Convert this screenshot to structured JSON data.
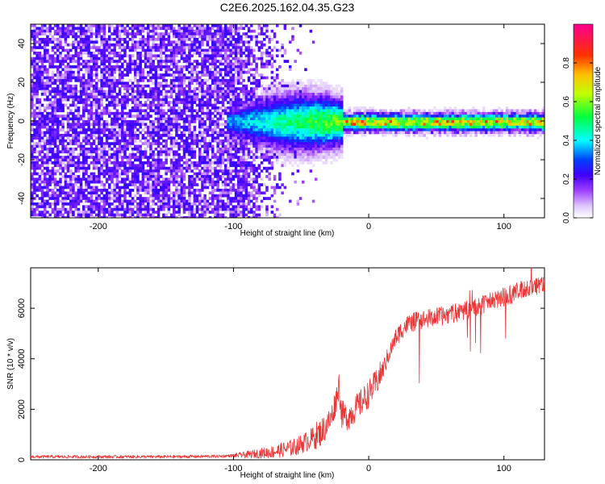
{
  "title": "C2E6.2025.162.04.35.G23",
  "chart_data": [
    {
      "type": "heatmap",
      "xlabel": "Height of straight line (km)",
      "ylabel": "Frequency (Hz)",
      "xlim": [
        -250,
        130
      ],
      "ylim": [
        -50,
        50
      ],
      "xticks": [
        -200,
        -100,
        0,
        100
      ],
      "yticks": [
        -40,
        -20,
        0,
        20,
        40
      ],
      "colorbar": {
        "label": "Normalized spectral amplitude",
        "range": [
          0,
          1
        ],
        "ticks": [
          "0.0",
          "0.2",
          "0.4",
          "0.6",
          "0.8"
        ],
        "tick_values": [
          0.0,
          0.2,
          0.4,
          0.6,
          0.8
        ],
        "colors": [
          "#ffffff",
          "#cc88ff",
          "#8000ff",
          "#0000ff",
          "#00ffff",
          "#00ff00",
          "#ffff00",
          "#ff8000",
          "#ff0000",
          "#ff00aa"
        ]
      },
      "description": "Broadband noise for heights below about -60 km; concentrated carrier near 0 Hz above about -100 km"
    },
    {
      "type": "line",
      "xlabel": "Height of straight line (km)",
      "ylabel": "SNR (10 * v/v)",
      "xlim": [
        -250,
        130
      ],
      "ylim": [
        0,
        7600
      ],
      "xticks": [
        -200,
        -100,
        0,
        100
      ],
      "yticks": [
        0,
        2000,
        4000,
        6000
      ],
      "color": "#ee3333",
      "series": [
        {
          "name": "SNR",
          "x": [
            -250,
            -200,
            -150,
            -110,
            -90,
            -70,
            -55,
            -45,
            -35,
            -28,
            -24,
            -22,
            -20,
            -15,
            -10,
            -5,
            0,
            5,
            10,
            15,
            20,
            25,
            30,
            40,
            50,
            60,
            70,
            80,
            90,
            100,
            110,
            120,
            130
          ],
          "y": [
            120,
            120,
            120,
            140,
            200,
            320,
            500,
            750,
            1100,
            1600,
            2400,
            3000,
            1800,
            1700,
            2000,
            2300,
            2600,
            3000,
            3500,
            4200,
            4800,
            5200,
            5400,
            5550,
            5650,
            5750,
            5900,
            6050,
            6250,
            6450,
            6650,
            6850,
            7000
          ]
        }
      ]
    }
  ]
}
